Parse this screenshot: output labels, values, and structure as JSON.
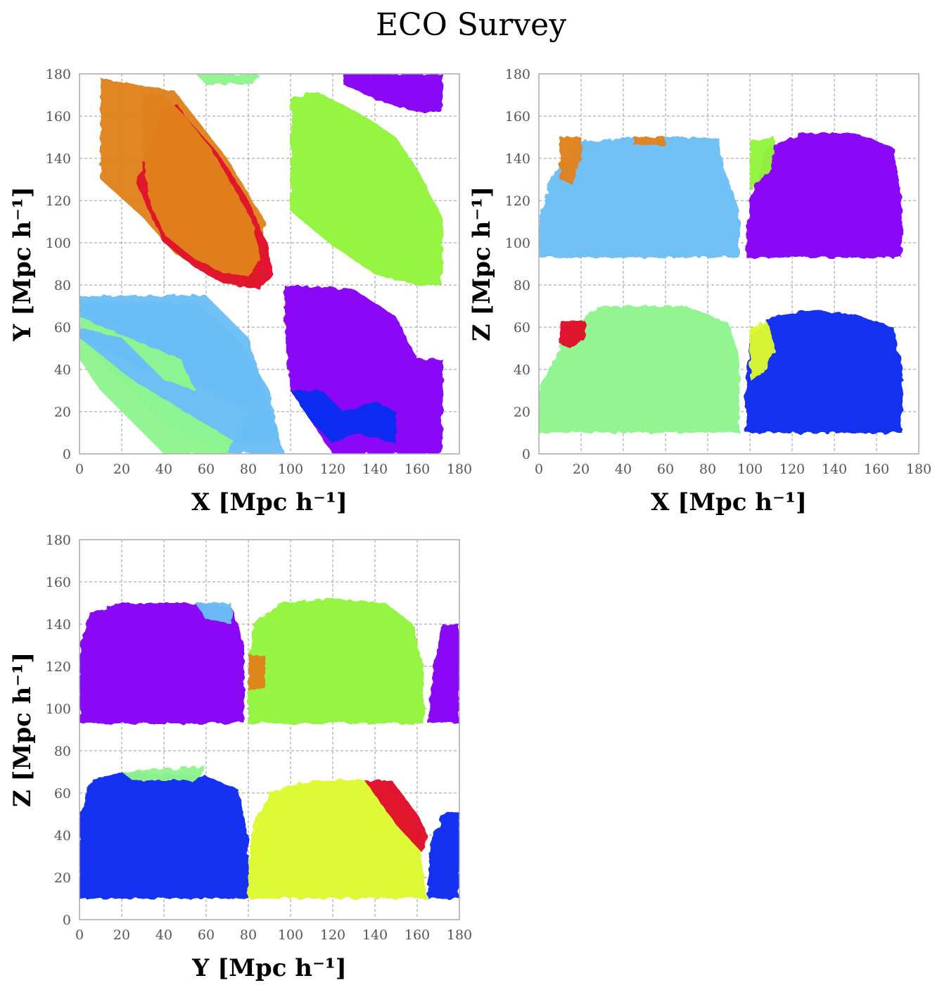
{
  "figure": {
    "title": "ECO Survey"
  },
  "chart_data": [
    {
      "type": "scatter",
      "xlabel": "X [Mpc h⁻¹]",
      "ylabel": "Y [Mpc h⁻¹]",
      "xlim": [
        0,
        180
      ],
      "ylim": [
        0,
        180
      ],
      "xticks": [
        0,
        20,
        40,
        60,
        80,
        100,
        120,
        140,
        160,
        180
      ],
      "yticks": [
        0,
        20,
        40,
        60,
        80,
        100,
        120,
        140,
        160,
        180
      ],
      "grid": true,
      "regions": [
        {
          "color": "#e0821e",
          "polygon": [
            [
              10,
              178
            ],
            [
              45,
              172
            ],
            [
              70,
              140
            ],
            [
              88,
              110
            ],
            [
              85,
              80
            ],
            [
              72,
              80
            ],
            [
              45,
              95
            ],
            [
              30,
              112
            ],
            [
              10,
              130
            ]
          ]
        },
        {
          "color": "#e0112b",
          "polygon": [
            [
              27,
              128
            ],
            [
              40,
              165
            ],
            [
              47,
              165
            ],
            [
              50,
              160
            ],
            [
              66,
              142
            ],
            [
              80,
              120
            ],
            [
              88,
              102
            ],
            [
              92,
              85
            ],
            [
              85,
              78
            ],
            [
              72,
              80
            ],
            [
              65,
              82
            ],
            [
              55,
              88
            ],
            [
              40,
              100
            ]
          ]
        },
        {
          "color": "#e0821e",
          "polygon": [
            [
              30,
              170
            ],
            [
              40,
              170
            ],
            [
              50,
              160
            ],
            [
              62,
              145
            ],
            [
              72,
              128
            ],
            [
              82,
              110
            ],
            [
              86,
              92
            ],
            [
              80,
              84
            ],
            [
              68,
              86
            ],
            [
              55,
              92
            ],
            [
              40,
              104
            ],
            [
              33,
              120
            ],
            [
              30,
              145
            ]
          ]
        },
        {
          "color": "#92f53b",
          "polygon": [
            [
              100,
              168
            ],
            [
              112,
              172
            ],
            [
              135,
              160
            ],
            [
              150,
              150
            ],
            [
              160,
              135
            ],
            [
              172,
              112
            ],
            [
              172,
              80
            ],
            [
              160,
              80
            ],
            [
              140,
              85
            ],
            [
              118,
              100
            ],
            [
              100,
              115
            ],
            [
              100,
              140
            ]
          ]
        },
        {
          "color": "#6bbef6",
          "polygon": [
            [
              0,
              75
            ],
            [
              60,
              75
            ],
            [
              80,
              55
            ],
            [
              97,
              0
            ],
            [
              70,
              0
            ],
            [
              40,
              15
            ],
            [
              0,
              55
            ]
          ]
        },
        {
          "color": "#8ff58d",
          "polygon": [
            [
              0,
              55
            ],
            [
              30,
              40
            ],
            [
              60,
              30
            ],
            [
              80,
              20
            ],
            [
              70,
              0
            ],
            [
              40,
              0
            ],
            [
              10,
              30
            ],
            [
              0,
              45
            ]
          ]
        },
        {
          "color": "#6bbef6",
          "polygon": [
            [
              0,
              72
            ],
            [
              55,
              72
            ],
            [
              75,
              55
            ],
            [
              90,
              30
            ],
            [
              95,
              5
            ],
            [
              75,
              5
            ],
            [
              50,
              20
            ],
            [
              25,
              35
            ],
            [
              0,
              55
            ]
          ]
        },
        {
          "color": "#8ff58d",
          "polygon": [
            [
              0,
              60
            ],
            [
              20,
              55
            ],
            [
              30,
              45
            ],
            [
              40,
              35
            ],
            [
              55,
              30
            ],
            [
              48,
              45
            ],
            [
              30,
              52
            ],
            [
              0,
              65
            ]
          ]
        },
        {
          "color": "#8703f6",
          "polygon": [
            [
              97,
              80
            ],
            [
              130,
              78
            ],
            [
              150,
              65
            ],
            [
              160,
              45
            ],
            [
              172,
              45
            ],
            [
              172,
              0
            ],
            [
              120,
              0
            ],
            [
              100,
              30
            ],
            [
              97,
              55
            ]
          ]
        },
        {
          "color": "#8703f6",
          "polygon": [
            [
              125,
              180
            ],
            [
              172,
              180
            ],
            [
              172,
              162
            ],
            [
              160,
              162
            ],
            [
              140,
              168
            ],
            [
              125,
              175
            ]
          ]
        },
        {
          "color": "#0a2cef",
          "polygon": [
            [
              100,
              30
            ],
            [
              110,
              15
            ],
            [
              120,
              5
            ],
            [
              130,
              10
            ],
            [
              150,
              5
            ],
            [
              150,
              20
            ],
            [
              140,
              25
            ],
            [
              125,
              20
            ],
            [
              115,
              30
            ]
          ]
        },
        {
          "color": "#8ff58d",
          "polygon": [
            [
              55,
              180
            ],
            [
              85,
              180
            ],
            [
              82,
              175
            ],
            [
              60,
              175
            ]
          ]
        }
      ]
    },
    {
      "type": "scatter",
      "xlabel": "X [Mpc h⁻¹]",
      "ylabel": "Z [Mpc h⁻¹]",
      "xlim": [
        0,
        180
      ],
      "ylim": [
        0,
        180
      ],
      "xticks": [
        0,
        20,
        40,
        60,
        80,
        100,
        120,
        140,
        160,
        180
      ],
      "yticks": [
        0,
        20,
        40,
        60,
        80,
        100,
        120,
        140,
        160,
        180
      ],
      "grid": true,
      "regions": [
        {
          "color": "#6bbef6",
          "polygon": [
            [
              0,
              93
            ],
            [
              95,
              93
            ],
            [
              95,
              115
            ],
            [
              88,
              135
            ],
            [
              85,
              150
            ],
            [
              50,
              150
            ],
            [
              20,
              148
            ],
            [
              5,
              130
            ],
            [
              0,
              110
            ]
          ]
        },
        {
          "color": "#e0821e",
          "polygon": [
            [
              10,
              150
            ],
            [
              20,
              150
            ],
            [
              20,
              140
            ],
            [
              15,
              128
            ],
            [
              10,
              130
            ]
          ]
        },
        {
          "color": "#e0821e",
          "polygon": [
            [
              45,
              150
            ],
            [
              60,
              150
            ],
            [
              60,
              146
            ],
            [
              45,
              146
            ]
          ]
        },
        {
          "color": "#8703f6",
          "polygon": [
            [
              98,
              93
            ],
            [
              172,
              93
            ],
            [
              172,
              120
            ],
            [
              168,
              145
            ],
            [
              150,
              152
            ],
            [
              125,
              152
            ],
            [
              108,
              145
            ],
            [
              100,
              120
            ]
          ]
        },
        {
          "color": "#92f53b",
          "polygon": [
            [
              100,
              148
            ],
            [
              112,
              150
            ],
            [
              110,
              135
            ],
            [
              100,
              125
            ]
          ]
        },
        {
          "color": "#8ff58d",
          "polygon": [
            [
              0,
              10
            ],
            [
              95,
              10
            ],
            [
              95,
              45
            ],
            [
              90,
              62
            ],
            [
              70,
              70
            ],
            [
              30,
              70
            ],
            [
              15,
              60
            ],
            [
              0,
              30
            ]
          ]
        },
        {
          "color": "#e0112b",
          "polygon": [
            [
              10,
              63
            ],
            [
              22,
              63
            ],
            [
              22,
              55
            ],
            [
              15,
              50
            ],
            [
              10,
              52
            ]
          ]
        },
        {
          "color": "#0a2cef",
          "polygon": [
            [
              98,
              10
            ],
            [
              172,
              10
            ],
            [
              172,
              40
            ],
            [
              168,
              60
            ],
            [
              150,
              66
            ],
            [
              130,
              68
            ],
            [
              110,
              65
            ],
            [
              100,
              55
            ],
            [
              98,
              30
            ]
          ]
        },
        {
          "color": "#ddf930",
          "polygon": [
            [
              100,
              60
            ],
            [
              108,
              63
            ],
            [
              112,
              50
            ],
            [
              108,
              40
            ],
            [
              100,
              35
            ]
          ]
        }
      ]
    },
    {
      "type": "scatter",
      "xlabel": "Y [Mpc h⁻¹]",
      "ylabel": "Z [Mpc h⁻¹]",
      "xlim": [
        0,
        180
      ],
      "ylim": [
        0,
        180
      ],
      "xticks": [
        0,
        20,
        40,
        60,
        80,
        100,
        120,
        140,
        160,
        180
      ],
      "yticks": [
        0,
        20,
        40,
        60,
        80,
        100,
        120,
        140,
        160,
        180
      ],
      "grid": true,
      "regions": [
        {
          "color": "#8703f6",
          "polygon": [
            [
              0,
              93
            ],
            [
              78,
              93
            ],
            [
              78,
              130
            ],
            [
              72,
              148
            ],
            [
              50,
              150
            ],
            [
              20,
              150
            ],
            [
              5,
              145
            ],
            [
              0,
              130
            ]
          ]
        },
        {
          "color": "#6bbef6",
          "polygon": [
            [
              55,
              150
            ],
            [
              72,
              150
            ],
            [
              72,
              140
            ],
            [
              60,
              142
            ]
          ]
        },
        {
          "color": "#92f53b",
          "polygon": [
            [
              80,
              93
            ],
            [
              163,
              93
            ],
            [
              163,
              120
            ],
            [
              158,
              140
            ],
            [
              145,
              150
            ],
            [
              120,
              152
            ],
            [
              95,
              150
            ],
            [
              82,
              140
            ],
            [
              80,
              120
            ]
          ]
        },
        {
          "color": "#e0821e",
          "polygon": [
            [
              80,
              125
            ],
            [
              88,
              125
            ],
            [
              88,
              110
            ],
            [
              80,
              108
            ]
          ]
        },
        {
          "color": "#8703f6",
          "polygon": [
            [
              165,
              93
            ],
            [
              180,
              93
            ],
            [
              180,
              140
            ],
            [
              172,
              140
            ],
            [
              168,
              120
            ]
          ]
        },
        {
          "color": "#0a2cef",
          "polygon": [
            [
              0,
              10
            ],
            [
              80,
              10
            ],
            [
              80,
              40
            ],
            [
              75,
              62
            ],
            [
              60,
              68
            ],
            [
              20,
              70
            ],
            [
              5,
              65
            ],
            [
              0,
              50
            ]
          ]
        },
        {
          "color": "#8ff58d",
          "polygon": [
            [
              20,
              70
            ],
            [
              60,
              73
            ],
            [
              55,
              66
            ],
            [
              25,
              66
            ]
          ]
        },
        {
          "color": "#ddf930",
          "polygon": [
            [
              80,
              10
            ],
            [
              165,
              10
            ],
            [
              160,
              40
            ],
            [
              150,
              58
            ],
            [
              135,
              66
            ],
            [
              110,
              66
            ],
            [
              90,
              60
            ],
            [
              82,
              45
            ],
            [
              80,
              25
            ]
          ]
        },
        {
          "color": "#e0112b",
          "polygon": [
            [
              135,
              66
            ],
            [
              148,
              66
            ],
            [
              160,
              50
            ],
            [
              165,
              40
            ],
            [
              162,
              32
            ],
            [
              150,
              45
            ]
          ]
        },
        {
          "color": "#0a2cef",
          "polygon": [
            [
              165,
              10
            ],
            [
              180,
              10
            ],
            [
              180,
              52
            ],
            [
              172,
              50
            ],
            [
              166,
              35
            ]
          ]
        }
      ]
    }
  ]
}
